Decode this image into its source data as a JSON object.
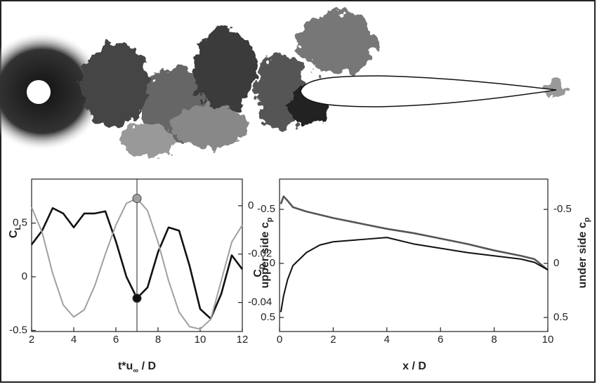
{
  "chart_data": [
    {
      "type": "line",
      "x": [
        2,
        2.5,
        3,
        3.5,
        4,
        4.5,
        5,
        5.5,
        6,
        6.5,
        7,
        7.5,
        8,
        8.5,
        9,
        9.5,
        10,
        10.5,
        11,
        11.5,
        12
      ],
      "series": [
        {
          "color": "#111111",
          "axis": "y",
          "values": [
            0.3,
            0.43,
            0.64,
            0.59,
            0.46,
            0.59,
            0.59,
            0.61,
            0.33,
            0,
            -0.2,
            -0.1,
            0.23,
            0.46,
            0.43,
            0.1,
            -0.3,
            -0.39,
            -0.16,
            0.2,
            0.07
          ]
        },
        {
          "color": "#a0a0a0",
          "axis": "y2",
          "values": [
            -0.0006,
            -0.011,
            -0.028,
            -0.041,
            -0.046,
            -0.043,
            -0.033,
            -0.02,
            -0.008,
            0.001,
            0.003,
            -0.002,
            -0.015,
            -0.031,
            -0.044,
            -0.05,
            -0.051,
            -0.047,
            -0.031,
            -0.015,
            -0.008
          ]
        }
      ],
      "xlim": [
        2,
        12
      ],
      "xticks": [
        2,
        4,
        6,
        8,
        10,
        12
      ],
      "ylim": [
        -0.51,
        0.91
      ],
      "yticks": [
        -0.5,
        0,
        0.5
      ],
      "y2lim": [
        -0.052,
        0.011
      ],
      "y2ticks": [
        -0.04,
        -0.02,
        0
      ],
      "marker_x": 7,
      "ylabel": {
        "text": "C",
        "sub": "L"
      },
      "y2label": {
        "text": "C",
        "sub": "D"
      },
      "xlabel": {
        "text": "t*u",
        "sub": "∞",
        "after": " / D"
      }
    },
    {
      "type": "line",
      "x": [
        0.05,
        0.15,
        0.3,
        0.5,
        1,
        1.5,
        2,
        3,
        4,
        5,
        6,
        7,
        8,
        9,
        9.5,
        10
      ],
      "series": [
        {
          "color": "#555555",
          "axis": "y",
          "values": [
            -0.55,
            -0.62,
            -0.58,
            -0.52,
            -0.48,
            -0.45,
            -0.42,
            -0.37,
            -0.32,
            -0.28,
            -0.23,
            -0.18,
            -0.12,
            -0.07,
            -0.04,
            0.06
          ]
        },
        {
          "color": "#111111",
          "axis": "y2",
          "values": [
            0.45,
            0.3,
            0.15,
            0.02,
            -0.1,
            -0.17,
            -0.2,
            -0.22,
            -0.24,
            -0.18,
            -0.14,
            -0.1,
            -0.07,
            -0.04,
            -0.01,
            0.06
          ]
        }
      ],
      "xlim": [
        0,
        10
      ],
      "xticks": [
        0,
        2,
        4,
        6,
        8,
        10
      ],
      "ylim": [
        0.63,
        -0.78
      ],
      "yticks": [
        -0.5,
        0,
        0.5
      ],
      "y2lim": [
        0.63,
        -0.78
      ],
      "y2ticks": [
        -0.5,
        0,
        0.5
      ],
      "ylabel": {
        "text": "upper side c",
        "sub": "p"
      },
      "y2label": {
        "text": "under side c",
        "sub": "p"
      },
      "xlabel": {
        "text": "x / D"
      }
    }
  ]
}
